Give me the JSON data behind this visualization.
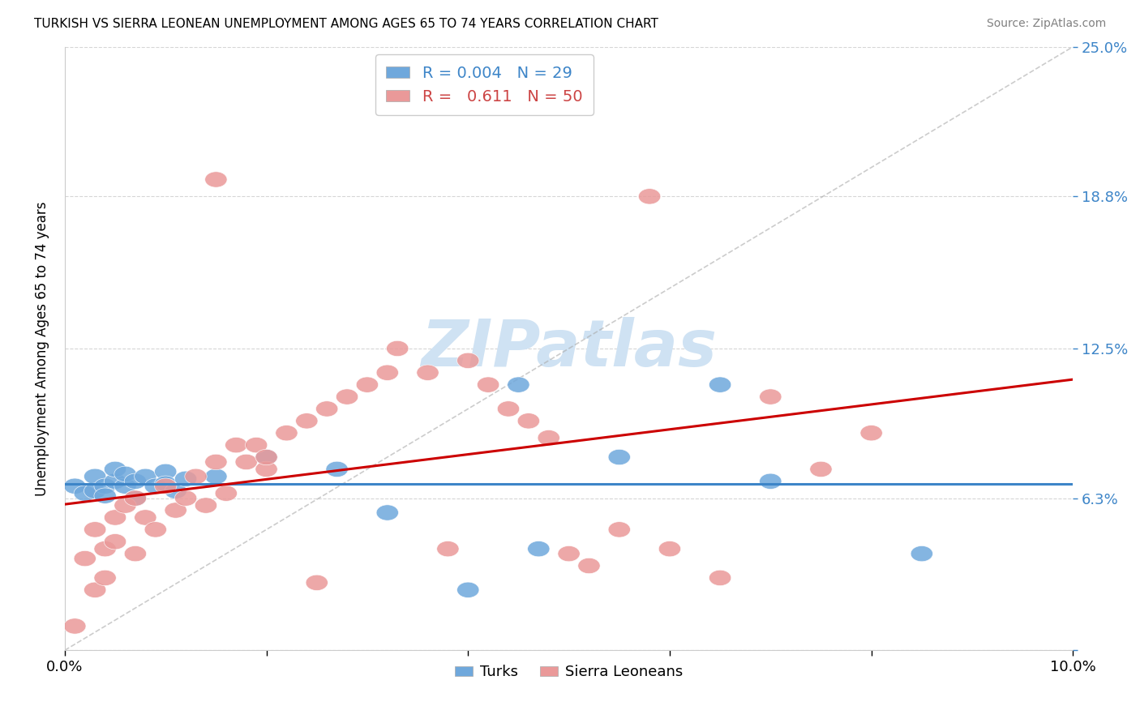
{
  "title": "TURKISH VS SIERRA LEONEAN UNEMPLOYMENT AMONG AGES 65 TO 74 YEARS CORRELATION CHART",
  "source": "Source: ZipAtlas.com",
  "ylabel": "Unemployment Among Ages 65 to 74 years",
  "xlim": [
    0.0,
    0.1
  ],
  "ylim": [
    0.0,
    0.25
  ],
  "xtick_positions": [
    0.0,
    0.02,
    0.04,
    0.06,
    0.08,
    0.1
  ],
  "xticklabels": [
    "0.0%",
    "",
    "",
    "",
    "",
    "10.0%"
  ],
  "ytick_positions": [
    0.0,
    0.063,
    0.125,
    0.188,
    0.25
  ],
  "yticklabels": [
    "",
    "6.3%",
    "12.5%",
    "18.8%",
    "25.0%"
  ],
  "turks_R": "0.004",
  "turks_N": "29",
  "sierra_R": "0.611",
  "sierra_N": "50",
  "turks_color": "#6fa8dc",
  "sierra_color": "#ea9999",
  "trend_turks_color": "#3d85c8",
  "trend_sierra_color": "#cc0000",
  "watermark_color": "#cfe2f3",
  "title_color": "#000000",
  "right_tick_color": "#3d85c8",
  "turks_x": [
    0.001,
    0.002,
    0.003,
    0.003,
    0.004,
    0.004,
    0.005,
    0.005,
    0.006,
    0.006,
    0.007,
    0.007,
    0.008,
    0.009,
    0.01,
    0.01,
    0.011,
    0.012,
    0.015,
    0.02,
    0.027,
    0.032,
    0.04,
    0.045,
    0.047,
    0.055,
    0.065,
    0.07,
    0.085
  ],
  "turks_y": [
    0.068,
    0.065,
    0.072,
    0.066,
    0.068,
    0.064,
    0.07,
    0.075,
    0.068,
    0.073,
    0.07,
    0.063,
    0.072,
    0.068,
    0.074,
    0.069,
    0.066,
    0.071,
    0.072,
    0.08,
    0.075,
    0.057,
    0.025,
    0.11,
    0.042,
    0.08,
    0.11,
    0.07,
    0.04
  ],
  "sierra_x": [
    0.001,
    0.002,
    0.003,
    0.003,
    0.004,
    0.004,
    0.005,
    0.005,
    0.006,
    0.007,
    0.007,
    0.008,
    0.009,
    0.01,
    0.011,
    0.012,
    0.013,
    0.014,
    0.015,
    0.016,
    0.017,
    0.018,
    0.019,
    0.02,
    0.02,
    0.022,
    0.024,
    0.026,
    0.028,
    0.03,
    0.032,
    0.033,
    0.036,
    0.04,
    0.042,
    0.044,
    0.046,
    0.048,
    0.05,
    0.052,
    0.055,
    0.06,
    0.065,
    0.07,
    0.075,
    0.08,
    0.058,
    0.038,
    0.025,
    0.015
  ],
  "sierra_y": [
    0.01,
    0.038,
    0.05,
    0.025,
    0.042,
    0.03,
    0.055,
    0.045,
    0.06,
    0.04,
    0.063,
    0.055,
    0.05,
    0.068,
    0.058,
    0.063,
    0.072,
    0.06,
    0.078,
    0.065,
    0.085,
    0.078,
    0.085,
    0.075,
    0.08,
    0.09,
    0.095,
    0.1,
    0.105,
    0.11,
    0.115,
    0.125,
    0.115,
    0.12,
    0.11,
    0.1,
    0.095,
    0.088,
    0.04,
    0.035,
    0.05,
    0.042,
    0.03,
    0.105,
    0.075,
    0.09,
    0.188,
    0.042,
    0.028,
    0.195
  ]
}
